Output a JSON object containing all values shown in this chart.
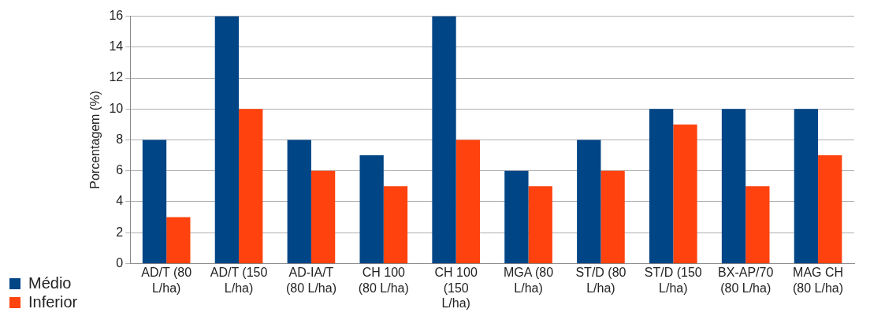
{
  "chart_data": {
    "type": "bar",
    "ylabel": "Porcentagem (%)",
    "categories": [
      "AD/T (80 L/ha)",
      "AD/T (150 L/ha)",
      "AD-IA/T (80 L/ha)",
      "CH 100 (80 L/ha)",
      "CH 100 (150 L/ha)",
      "MGA (80 L/ha)",
      "ST/D (80 L/ha)",
      "ST/D (150 L/ha)",
      "BX-AP/70 (80 L/ha)",
      "MAG CH (80 L/ha)"
    ],
    "series": [
      {
        "name": "Médio",
        "color": "#004586",
        "values": [
          8,
          16,
          8,
          7,
          16,
          6,
          8,
          10,
          10,
          10
        ]
      },
      {
        "name": "Inferior",
        "color": "#ff420e",
        "values": [
          3,
          10,
          6,
          5,
          8,
          5,
          6,
          9,
          5,
          7
        ]
      }
    ],
    "ylim": [
      0,
      16
    ],
    "yticks": [
      0,
      2,
      4,
      6,
      8,
      10,
      12,
      14,
      16
    ],
    "grid": "y",
    "legend": "bottom left"
  }
}
